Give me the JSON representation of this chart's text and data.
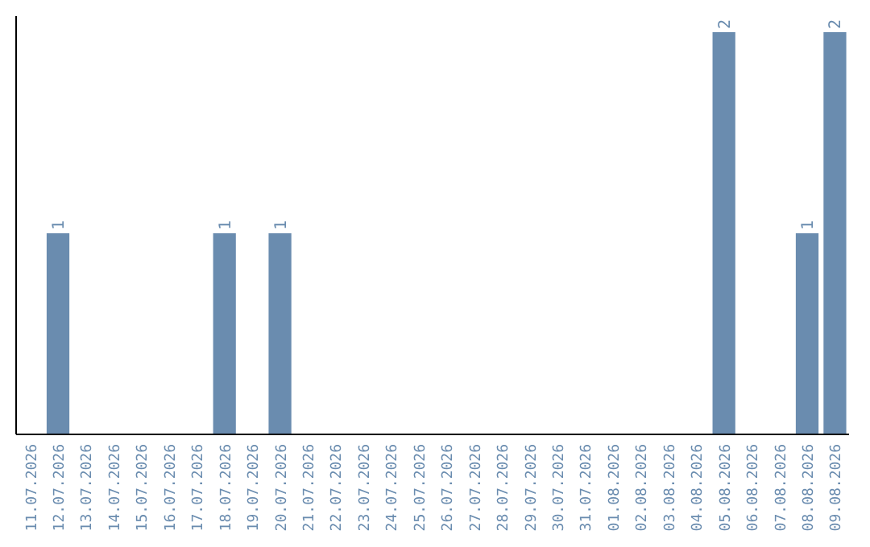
{
  "chart_data": {
    "type": "bar",
    "categories": [
      "11.07.2026",
      "12.07.2026",
      "13.07.2026",
      "14.07.2026",
      "15.07.2026",
      "16.07.2026",
      "17.07.2026",
      "18.07.2026",
      "19.07.2026",
      "20.07.2026",
      "21.07.2026",
      "22.07.2026",
      "23.07.2026",
      "24.07.2026",
      "25.07.2026",
      "26.07.2026",
      "27.07.2026",
      "28.07.2026",
      "29.07.2026",
      "30.07.2026",
      "31.07.2026",
      "01.08.2026",
      "02.08.2026",
      "03.08.2026",
      "04.08.2026",
      "05.08.2026",
      "06.08.2026",
      "07.08.2026",
      "08.08.2026",
      "09.08.2026"
    ],
    "values": [
      0,
      1,
      0,
      0,
      0,
      0,
      0,
      1,
      0,
      1,
      0,
      0,
      0,
      0,
      0,
      0,
      0,
      0,
      0,
      0,
      0,
      0,
      0,
      0,
      0,
      2,
      0,
      0,
      1,
      2
    ],
    "value_labels": [
      null,
      "1",
      null,
      null,
      null,
      null,
      null,
      "1",
      null,
      "1",
      null,
      null,
      null,
      null,
      null,
      null,
      null,
      null,
      null,
      null,
      null,
      null,
      null,
      null,
      null,
      "2",
      null,
      null,
      "1",
      "2"
    ],
    "color": "#6a8caf"
  }
}
